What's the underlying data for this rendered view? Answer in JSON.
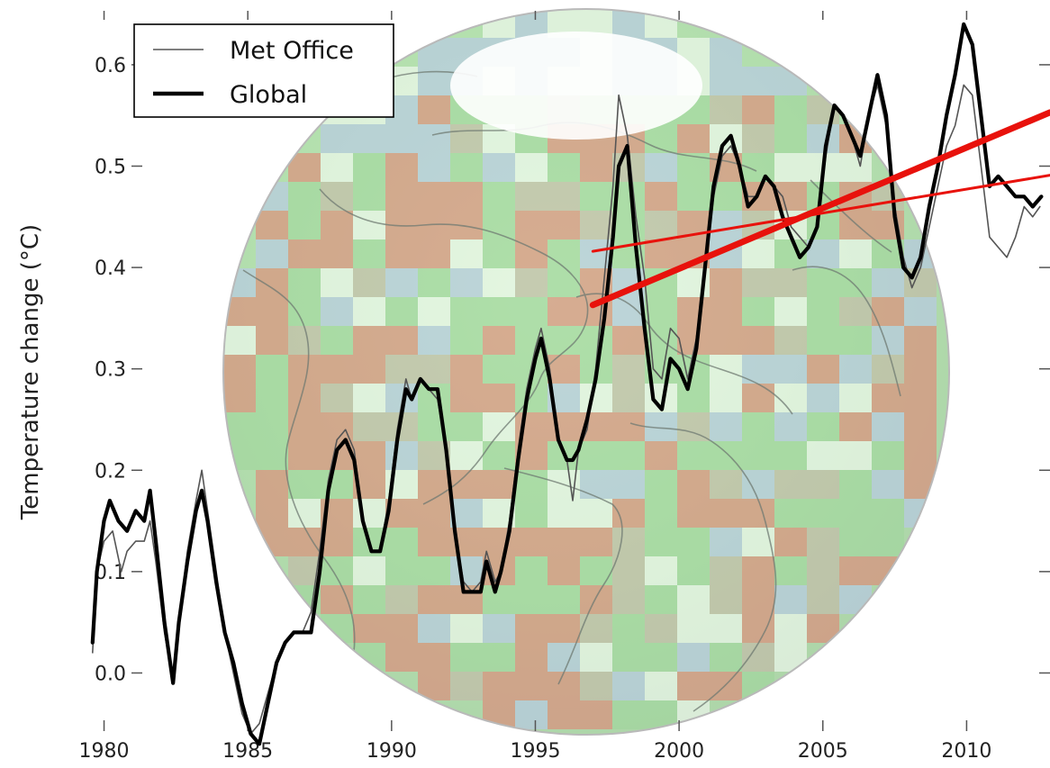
{
  "chart_data": {
    "type": "line",
    "title": "",
    "xlabel": "",
    "ylabel": "Temperature change (°C)",
    "xlim": [
      1979.2,
      2012.9
    ],
    "ylim": [
      -0.06,
      0.655
    ],
    "grid": false,
    "legend_position": "top-left",
    "background": "semi-transparent globe map of temperature anomalies (red = warmer, green = neutral, blue = cooler, white = no data)",
    "x_ticks": [
      1980,
      1985,
      1990,
      1995,
      2000,
      2005,
      2010
    ],
    "x_tick_labels": [
      "1980",
      "1985",
      "1990",
      "1995",
      "2000",
      "2005",
      "2010"
    ],
    "y_ticks": [
      0.0,
      0.1,
      0.2,
      0.3,
      0.4,
      0.5,
      0.6
    ],
    "y_tick_labels": [
      "0.0",
      "0.1",
      "0.2",
      "0.3",
      "0.4",
      "0.5",
      "0.6"
    ],
    "colors": {
      "met_office": "#555555",
      "global": "#000000",
      "trend": "#e8120c",
      "globe_warm": "#e87a70",
      "globe_neutral": "#9fd59a",
      "globe_cool": "#b9c4f2"
    },
    "series": [
      {
        "name": "Met Office",
        "style": "thin",
        "points": [
          [
            1979.6,
            0.02
          ],
          [
            1979.75,
            0.1
          ],
          [
            1980.0,
            0.13
          ],
          [
            1980.3,
            0.14
          ],
          [
            1980.6,
            0.1
          ],
          [
            1980.8,
            0.12
          ],
          [
            1981.1,
            0.13
          ],
          [
            1981.4,
            0.13
          ],
          [
            1981.6,
            0.15
          ],
          [
            1981.8,
            0.11
          ],
          [
            1982.1,
            0.04
          ],
          [
            1982.4,
            -0.01
          ],
          [
            1982.6,
            0.05
          ],
          [
            1982.9,
            0.12
          ],
          [
            1983.2,
            0.17
          ],
          [
            1983.4,
            0.2
          ],
          [
            1983.6,
            0.16
          ],
          [
            1983.9,
            0.1
          ],
          [
            1984.2,
            0.04
          ],
          [
            1984.5,
            0.0
          ],
          [
            1984.8,
            -0.04
          ],
          [
            1985.1,
            -0.06
          ],
          [
            1985.4,
            -0.05
          ],
          [
            1985.7,
            -0.02
          ],
          [
            1986.0,
            0.01
          ],
          [
            1986.3,
            0.03
          ],
          [
            1986.6,
            0.04
          ],
          [
            1986.9,
            0.04
          ],
          [
            1987.2,
            0.06
          ],
          [
            1987.5,
            0.12
          ],
          [
            1987.8,
            0.19
          ],
          [
            1988.1,
            0.23
          ],
          [
            1988.4,
            0.24
          ],
          [
            1988.7,
            0.22
          ],
          [
            1989.0,
            0.15
          ],
          [
            1989.3,
            0.12
          ],
          [
            1989.6,
            0.12
          ],
          [
            1989.9,
            0.17
          ],
          [
            1990.2,
            0.24
          ],
          [
            1990.5,
            0.29
          ],
          [
            1990.7,
            0.27
          ],
          [
            1991.0,
            0.29
          ],
          [
            1991.3,
            0.28
          ],
          [
            1991.6,
            0.27
          ],
          [
            1991.9,
            0.22
          ],
          [
            1992.2,
            0.14
          ],
          [
            1992.5,
            0.09
          ],
          [
            1992.8,
            0.08
          ],
          [
            1993.1,
            0.09
          ],
          [
            1993.3,
            0.12
          ],
          [
            1993.6,
            0.09
          ],
          [
            1993.8,
            0.1
          ],
          [
            1994.1,
            0.15
          ],
          [
            1994.4,
            0.22
          ],
          [
            1994.7,
            0.28
          ],
          [
            1995.0,
            0.32
          ],
          [
            1995.2,
            0.34
          ],
          [
            1995.5,
            0.3
          ],
          [
            1995.8,
            0.23
          ],
          [
            1996.1,
            0.21
          ],
          [
            1996.3,
            0.17
          ],
          [
            1996.5,
            0.22
          ],
          [
            1996.8,
            0.24
          ],
          [
            1997.1,
            0.3
          ],
          [
            1997.4,
            0.39
          ],
          [
            1997.7,
            0.48
          ],
          [
            1997.9,
            0.57
          ],
          [
            1998.2,
            0.53
          ],
          [
            1998.5,
            0.45
          ],
          [
            1998.8,
            0.39
          ],
          [
            1999.1,
            0.3
          ],
          [
            1999.4,
            0.29
          ],
          [
            1999.7,
            0.34
          ],
          [
            2000.0,
            0.33
          ],
          [
            2000.3,
            0.29
          ],
          [
            2000.6,
            0.33
          ],
          [
            2000.9,
            0.4
          ],
          [
            2001.2,
            0.47
          ],
          [
            2001.5,
            0.51
          ],
          [
            2001.8,
            0.52
          ],
          [
            2002.1,
            0.5
          ],
          [
            2002.4,
            0.47
          ],
          [
            2002.7,
            0.47
          ],
          [
            2003.0,
            0.49
          ],
          [
            2003.3,
            0.48
          ],
          [
            2003.6,
            0.47
          ],
          [
            2003.9,
            0.44
          ],
          [
            2004.2,
            0.43
          ],
          [
            2004.5,
            0.42
          ],
          [
            2004.8,
            0.44
          ],
          [
            2005.1,
            0.51
          ],
          [
            2005.4,
            0.56
          ],
          [
            2005.7,
            0.55
          ],
          [
            2006.0,
            0.53
          ],
          [
            2006.3,
            0.5
          ],
          [
            2006.6,
            0.55
          ],
          [
            2006.9,
            0.58
          ],
          [
            2007.2,
            0.54
          ],
          [
            2007.5,
            0.46
          ],
          [
            2007.8,
            0.41
          ],
          [
            2008.1,
            0.38
          ],
          [
            2008.4,
            0.4
          ],
          [
            2008.7,
            0.44
          ],
          [
            2009.0,
            0.48
          ],
          [
            2009.3,
            0.52
          ],
          [
            2009.6,
            0.54
          ],
          [
            2009.9,
            0.58
          ],
          [
            2010.2,
            0.57
          ],
          [
            2010.5,
            0.5
          ],
          [
            2010.8,
            0.43
          ],
          [
            2011.1,
            0.42
          ],
          [
            2011.4,
            0.41
          ],
          [
            2011.7,
            0.43
          ],
          [
            2012.0,
            0.46
          ],
          [
            2012.3,
            0.45
          ],
          [
            2012.55,
            0.46
          ]
        ]
      },
      {
        "name": "Global",
        "style": "thick",
        "points": [
          [
            1979.6,
            0.03
          ],
          [
            1979.75,
            0.1
          ],
          [
            1980.0,
            0.15
          ],
          [
            1980.2,
            0.17
          ],
          [
            1980.5,
            0.15
          ],
          [
            1980.8,
            0.14
          ],
          [
            1981.1,
            0.16
          ],
          [
            1981.4,
            0.15
          ],
          [
            1981.6,
            0.18
          ],
          [
            1981.8,
            0.13
          ],
          [
            1982.1,
            0.05
          ],
          [
            1982.4,
            -0.01
          ],
          [
            1982.6,
            0.05
          ],
          [
            1982.9,
            0.11
          ],
          [
            1983.2,
            0.16
          ],
          [
            1983.4,
            0.18
          ],
          [
            1983.6,
            0.15
          ],
          [
            1983.9,
            0.09
          ],
          [
            1984.2,
            0.04
          ],
          [
            1984.5,
            0.01
          ],
          [
            1984.8,
            -0.03
          ],
          [
            1985.1,
            -0.06
          ],
          [
            1985.4,
            -0.07
          ],
          [
            1985.7,
            -0.03
          ],
          [
            1986.0,
            0.01
          ],
          [
            1986.3,
            0.03
          ],
          [
            1986.6,
            0.04
          ],
          [
            1986.9,
            0.04
          ],
          [
            1987.2,
            0.04
          ],
          [
            1987.5,
            0.1
          ],
          [
            1987.8,
            0.18
          ],
          [
            1988.1,
            0.22
          ],
          [
            1988.4,
            0.23
          ],
          [
            1988.7,
            0.21
          ],
          [
            1989.0,
            0.15
          ],
          [
            1989.3,
            0.12
          ],
          [
            1989.6,
            0.12
          ],
          [
            1989.9,
            0.16
          ],
          [
            1990.2,
            0.23
          ],
          [
            1990.5,
            0.28
          ],
          [
            1990.7,
            0.27
          ],
          [
            1991.0,
            0.29
          ],
          [
            1991.3,
            0.28
          ],
          [
            1991.6,
            0.28
          ],
          [
            1991.9,
            0.22
          ],
          [
            1992.2,
            0.14
          ],
          [
            1992.5,
            0.08
          ],
          [
            1992.8,
            0.08
          ],
          [
            1993.1,
            0.08
          ],
          [
            1993.3,
            0.11
          ],
          [
            1993.6,
            0.08
          ],
          [
            1993.8,
            0.1
          ],
          [
            1994.1,
            0.14
          ],
          [
            1994.4,
            0.21
          ],
          [
            1994.7,
            0.27
          ],
          [
            1995.0,
            0.31
          ],
          [
            1995.2,
            0.33
          ],
          [
            1995.5,
            0.29
          ],
          [
            1995.8,
            0.23
          ],
          [
            1996.1,
            0.21
          ],
          [
            1996.3,
            0.21
          ],
          [
            1996.5,
            0.22
          ],
          [
            1996.8,
            0.25
          ],
          [
            1997.1,
            0.29
          ],
          [
            1997.4,
            0.35
          ],
          [
            1997.7,
            0.43
          ],
          [
            1997.9,
            0.5
          ],
          [
            1998.2,
            0.52
          ],
          [
            1998.5,
            0.42
          ],
          [
            1998.8,
            0.34
          ],
          [
            1999.1,
            0.27
          ],
          [
            1999.4,
            0.26
          ],
          [
            1999.7,
            0.31
          ],
          [
            2000.0,
            0.3
          ],
          [
            2000.3,
            0.28
          ],
          [
            2000.6,
            0.32
          ],
          [
            2000.9,
            0.4
          ],
          [
            2001.2,
            0.48
          ],
          [
            2001.5,
            0.52
          ],
          [
            2001.8,
            0.53
          ],
          [
            2002.1,
            0.5
          ],
          [
            2002.4,
            0.46
          ],
          [
            2002.7,
            0.47
          ],
          [
            2003.0,
            0.49
          ],
          [
            2003.3,
            0.48
          ],
          [
            2003.6,
            0.45
          ],
          [
            2003.9,
            0.43
          ],
          [
            2004.2,
            0.41
          ],
          [
            2004.5,
            0.42
          ],
          [
            2004.8,
            0.44
          ],
          [
            2005.1,
            0.52
          ],
          [
            2005.4,
            0.56
          ],
          [
            2005.7,
            0.55
          ],
          [
            2006.0,
            0.53
          ],
          [
            2006.3,
            0.51
          ],
          [
            2006.6,
            0.55
          ],
          [
            2006.9,
            0.59
          ],
          [
            2007.2,
            0.55
          ],
          [
            2007.5,
            0.45
          ],
          [
            2007.8,
            0.4
          ],
          [
            2008.1,
            0.39
          ],
          [
            2008.4,
            0.41
          ],
          [
            2008.7,
            0.46
          ],
          [
            2009.0,
            0.5
          ],
          [
            2009.3,
            0.55
          ],
          [
            2009.6,
            0.59
          ],
          [
            2009.9,
            0.64
          ],
          [
            2010.2,
            0.62
          ],
          [
            2010.5,
            0.55
          ],
          [
            2010.8,
            0.48
          ],
          [
            2011.1,
            0.49
          ],
          [
            2011.4,
            0.48
          ],
          [
            2011.7,
            0.47
          ],
          [
            2012.0,
            0.47
          ],
          [
            2012.3,
            0.46
          ],
          [
            2012.6,
            0.47
          ]
        ]
      }
    ],
    "trend_lines": [
      {
        "style": "thin",
        "x": [
          1997.0,
          2012.9
        ],
        "y": [
          0.416,
          0.491
        ]
      },
      {
        "style": "thick",
        "x": [
          1997.0,
          2012.9
        ],
        "y": [
          0.363,
          0.553
        ]
      }
    ],
    "legend": [
      {
        "label": "Met Office",
        "series": "Met Office"
      },
      {
        "label": "Global",
        "series": "Global"
      }
    ]
  }
}
